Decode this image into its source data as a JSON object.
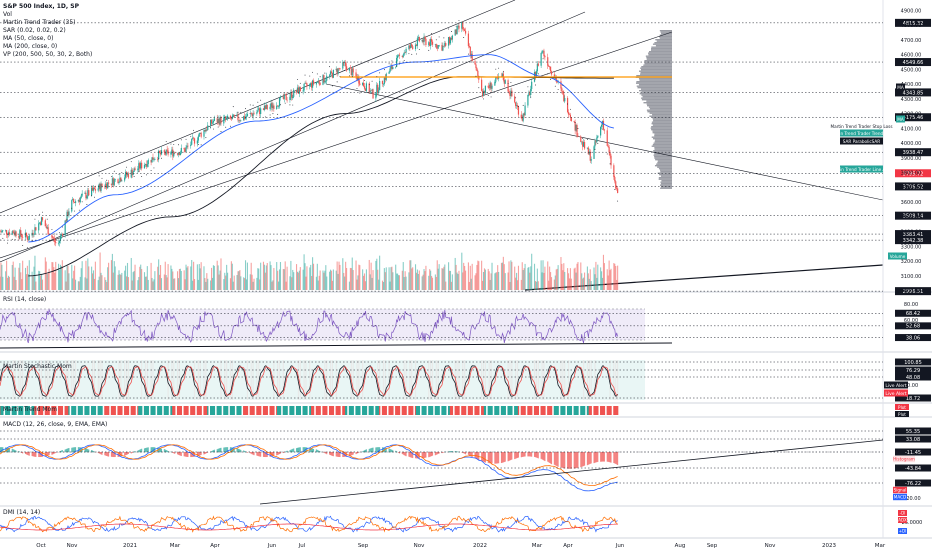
{
  "header": {
    "symbol": "S&P 500 Index, 1D, SP",
    "indicators": [
      "Vol",
      "Martin Trend Trader (35)",
      "SAR (0.02, 0.02, 0.2)",
      "MA (50, close, 0)",
      "MA (200, close, 0)",
      "VP (200, 500, 50, 30, 2, Both)"
    ]
  },
  "panes": {
    "rsi_title": "RSI (14, close)",
    "stoch_title": "Martin Stochastic Mom",
    "stoch2_title": "Martin Trend Mom",
    "macd_title": "MACD (12, 26, close, 9, EMA, EMA)",
    "dmi_title": "DMI (14, 14)"
  },
  "price_axis": {
    "ticks": [
      "4900.00",
      "4800.00",
      "4700.00",
      "4600.00",
      "4500.00",
      "4400.00",
      "4300.00",
      "4200.00",
      "4100.00",
      "4000.00",
      "3900.00",
      "3800.00",
      "3700.00",
      "3600.00",
      "3500.00",
      "3400.00",
      "3300.00",
      "3200.00",
      "3100.00",
      "3000.00"
    ],
    "badges": [
      {
        "text": "4815.32",
        "color": "#131722"
      },
      {
        "text": "4549.66",
        "color": "#131722"
      },
      {
        "text": "4343.85",
        "color": "#131722"
      },
      {
        "text": "4175.46",
        "color": "#131722"
      },
      {
        "text": "3938.47",
        "color": "#131722"
      },
      {
        "text": "3795.72",
        "color": "#f23645"
      },
      {
        "text": "3706.52",
        "color": "#131722"
      },
      {
        "text": "3508.14",
        "color": "#131722"
      },
      {
        "text": "3383.41",
        "color": "#131722"
      },
      {
        "text": "3342.38",
        "color": "#131722"
      },
      {
        "text": "2996.51",
        "color": "#131722"
      }
    ]
  },
  "series_labels": [
    {
      "text": "MA",
      "color": "#131722"
    },
    {
      "text": "MA",
      "color": "#26a69a"
    },
    {
      "text": "Martin Trend Trader Stop Loss",
      "color": "#ffffff"
    },
    {
      "text": "Martin Trend Trader Trend Line",
      "color": "#26a69a"
    },
    {
      "text": "SAR ParabolicSAR",
      "color": "#131722"
    },
    {
      "text": "Martin Trend Trader Line Alert",
      "color": "#26a69a"
    },
    {
      "text": "Volume",
      "color": "#26a69a"
    }
  ],
  "rsi_axis": {
    "ticks": [
      "80.00",
      "60.00",
      "40.00"
    ],
    "badges": [
      {
        "text": "68.42"
      },
      {
        "text": "52.68"
      },
      {
        "text": "38.06"
      }
    ]
  },
  "stoch_axis": {
    "badges": [
      {
        "text": "100.85"
      },
      {
        "text": "76.29"
      },
      {
        "text": "48.08"
      },
      {
        "text": "18.72"
      }
    ],
    "ticks": [
      "40.00"
    ],
    "labels": [
      {
        "text": "Live Alert",
        "color": "#131722"
      },
      {
        "text": "Live Alert",
        "color": "#f23645"
      }
    ]
  },
  "trend_mom_axis": {
    "labels": [
      {
        "text": "Plot",
        "color": "#f23645"
      },
      {
        "text": "Plot",
        "color": "#131722"
      }
    ]
  },
  "macd_axis": {
    "badges": [
      {
        "text": "55.35"
      },
      {
        "text": "33.08"
      },
      {
        "text": "-11.45"
      },
      {
        "text": "-43.84"
      },
      {
        "text": "-76.22"
      }
    ],
    "ticks": [
      "-120.00"
    ],
    "labels": [
      {
        "text": "Histogram",
        "color": "#f23645"
      },
      {
        "text": "Signal",
        "color": "#f23645"
      },
      {
        "text": "MACD",
        "color": "#2962ff"
      }
    ]
  },
  "dmi_axis": {
    "ticks": [
      "25.0000"
    ],
    "labels": [
      {
        "text": "-DI",
        "color": "#f23645"
      },
      {
        "text": "ADX",
        "color": "#f23645"
      },
      {
        "text": "+DI",
        "color": "#2962ff"
      }
    ]
  },
  "time_axis": [
    "Oct",
    "Nov",
    "2021",
    "Mar",
    "Apr",
    "Jun",
    "Jul",
    "Sep",
    "Nov",
    "2022",
    "Mar",
    "Apr",
    "Jun",
    "Aug",
    "Sep",
    "Nov",
    "2023",
    "Mar"
  ],
  "colors": {
    "up": "#26a69a",
    "down": "#ef5350",
    "ma50": "#2962ff",
    "ma200": "#131722",
    "poc": "#ff9800"
  },
  "chart_data": {
    "type": "candlestick",
    "title": "S&P 500 Index, 1D, SP",
    "x_range": [
      "2020-09",
      "2023-03"
    ],
    "ylim": [
      2950,
      4950
    ],
    "close_path": [
      [
        "2020-09-15",
        3400
      ],
      [
        "2020-10-01",
        3360
      ],
      [
        "2020-10-15",
        3480
      ],
      [
        "2020-11-01",
        3300
      ],
      [
        "2020-11-15",
        3590
      ],
      [
        "2020-12-15",
        3700
      ],
      [
        "2021-01-15",
        3790
      ],
      [
        "2021-02-15",
        3920
      ],
      [
        "2021-03-15",
        3950
      ],
      [
        "2021-04-15",
        4150
      ],
      [
        "2021-05-15",
        4170
      ],
      [
        "2021-06-15",
        4250
      ],
      [
        "2021-07-15",
        4360
      ],
      [
        "2021-08-15",
        4450
      ],
      [
        "2021-09-01",
        4530
      ],
      [
        "2021-10-01",
        4330
      ],
      [
        "2021-11-01",
        4610
      ],
      [
        "2021-11-20",
        4700
      ],
      [
        "2021-12-15",
        4650
      ],
      [
        "2022-01-03",
        4800
      ],
      [
        "2022-01-25",
        4350
      ],
      [
        "2022-02-15",
        4450
      ],
      [
        "2022-03-08",
        4170
      ],
      [
        "2022-03-29",
        4630
      ],
      [
        "2022-04-15",
        4400
      ],
      [
        "2022-05-10",
        4000
      ],
      [
        "2022-05-20",
        3900
      ],
      [
        "2022-06-01",
        4150
      ],
      [
        "2022-06-16",
        3666
      ]
    ],
    "ma50_path": [
      [
        "2020-10-01",
        3330
      ],
      [
        "2021-01-01",
        3650
      ],
      [
        "2021-06-01",
        4150
      ],
      [
        "2021-11-15",
        4550
      ],
      [
        "2022-02-01",
        4600
      ],
      [
        "2022-04-01",
        4450
      ],
      [
        "2022-06-16",
        4100
      ]
    ],
    "ma200_path": [
      [
        "2020-10-01",
        3100
      ],
      [
        "2021-03-01",
        3500
      ],
      [
        "2021-09-01",
        4200
      ],
      [
        "2022-01-01",
        4450
      ],
      [
        "2022-06-16",
        4440
      ]
    ],
    "volume_profile_poc": 4440,
    "rsi": {
      "overbought": 70,
      "oversold": 30,
      "last": 38.06
    },
    "macd": {
      "macd": -76.22,
      "signal": -43.84,
      "histogram": -11.45
    }
  }
}
